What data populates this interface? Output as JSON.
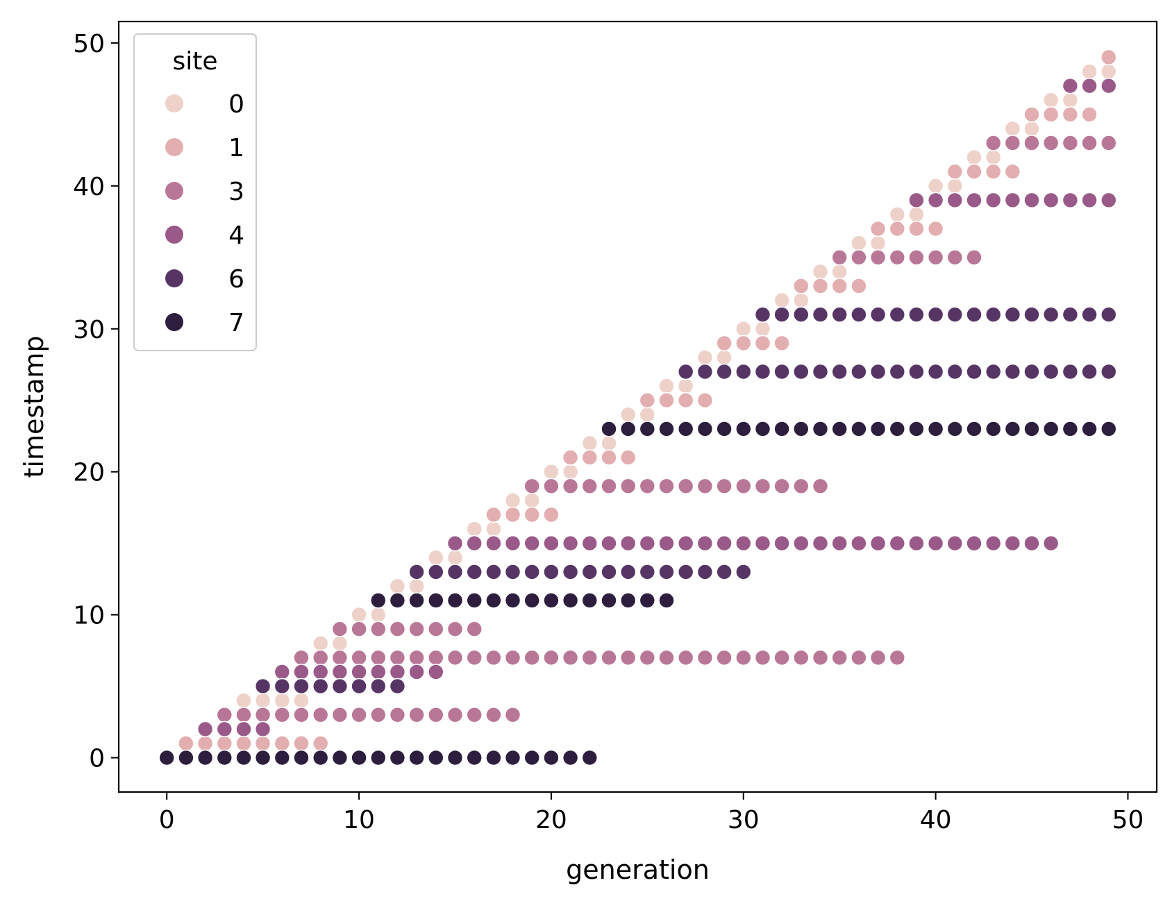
{
  "chart_data": {
    "type": "scatter",
    "title": "",
    "xlabel": "generation",
    "ylabel": "timestamp",
    "xlim": [
      -2.5,
      51.5
    ],
    "ylim": [
      -2.4,
      51.5
    ],
    "xticks": [
      0,
      10,
      20,
      30,
      40,
      50
    ],
    "yticks": [
      0,
      10,
      20,
      30,
      40,
      50
    ],
    "grid": false,
    "legend": {
      "title": "site",
      "placement": "upper-left",
      "entries": [
        {
          "label": "0",
          "color": "#eed1c9"
        },
        {
          "label": "1",
          "color": "#e2aeb0"
        },
        {
          "label": "3",
          "color": "#b97797"
        },
        {
          "label": "4",
          "color": "#9a5a89"
        },
        {
          "label": "6",
          "color": "#563565"
        },
        {
          "label": "7",
          "color": "#2d1e3e"
        }
      ]
    },
    "series": [
      {
        "site": 0,
        "color": "#eed1c9",
        "ranges": [
          {
            "y": 4,
            "x_from": 4,
            "x_to": 7
          },
          {
            "y": 8,
            "x_from": 8,
            "x_to": 9
          },
          {
            "y": 10,
            "x_from": 10,
            "x_to": 11
          },
          {
            "y": 12,
            "x_from": 12,
            "x_to": 13
          },
          {
            "y": 14,
            "x_from": 14,
            "x_to": 15
          },
          {
            "y": 16,
            "x_from": 16,
            "x_to": 17
          },
          {
            "y": 18,
            "x_from": 18,
            "x_to": 19
          },
          {
            "y": 20,
            "x_from": 20,
            "x_to": 21
          },
          {
            "y": 22,
            "x_from": 22,
            "x_to": 23
          },
          {
            "y": 24,
            "x_from": 24,
            "x_to": 25
          },
          {
            "y": 26,
            "x_from": 26,
            "x_to": 27
          },
          {
            "y": 28,
            "x_from": 28,
            "x_to": 29
          },
          {
            "y": 30,
            "x_from": 30,
            "x_to": 31
          },
          {
            "y": 32,
            "x_from": 32,
            "x_to": 33
          },
          {
            "y": 34,
            "x_from": 34,
            "x_to": 35
          },
          {
            "y": 36,
            "x_from": 36,
            "x_to": 37
          },
          {
            "y": 38,
            "x_from": 38,
            "x_to": 39
          },
          {
            "y": 40,
            "x_from": 40,
            "x_to": 41
          },
          {
            "y": 42,
            "x_from": 42,
            "x_to": 43
          },
          {
            "y": 44,
            "x_from": 44,
            "x_to": 45
          },
          {
            "y": 46,
            "x_from": 46,
            "x_to": 47
          },
          {
            "y": 48,
            "x_from": 48,
            "x_to": 49
          }
        ]
      },
      {
        "site": 1,
        "color": "#e2aeb0",
        "ranges": [
          {
            "y": 1,
            "x_from": 1,
            "x_to": 8
          },
          {
            "y": 17,
            "x_from": 17,
            "x_to": 20
          },
          {
            "y": 21,
            "x_from": 21,
            "x_to": 24
          },
          {
            "y": 25,
            "x_from": 25,
            "x_to": 28
          },
          {
            "y": 29,
            "x_from": 29,
            "x_to": 32
          },
          {
            "y": 33,
            "x_from": 33,
            "x_to": 36
          },
          {
            "y": 37,
            "x_from": 37,
            "x_to": 40
          },
          {
            "y": 41,
            "x_from": 41,
            "x_to": 44
          },
          {
            "y": 45,
            "x_from": 45,
            "x_to": 48
          },
          {
            "y": 49,
            "x_from": 49,
            "x_to": 49
          }
        ]
      },
      {
        "site": 3,
        "color": "#b97797",
        "ranges": [
          {
            "y": 3,
            "x_from": 3,
            "x_to": 18
          },
          {
            "y": 7,
            "x_from": 7,
            "x_to": 38
          },
          {
            "y": 9,
            "x_from": 9,
            "x_to": 16
          },
          {
            "y": 19,
            "x_from": 19,
            "x_to": 34
          },
          {
            "y": 35,
            "x_from": 35,
            "x_to": 42
          },
          {
            "y": 43,
            "x_from": 43,
            "x_to": 49
          }
        ]
      },
      {
        "site": 4,
        "color": "#9a5a89",
        "ranges": [
          {
            "y": 2,
            "x_from": 2,
            "x_to": 5
          },
          {
            "y": 6,
            "x_from": 6,
            "x_to": 14
          },
          {
            "y": 15,
            "x_from": 15,
            "x_to": 46
          },
          {
            "y": 39,
            "x_from": 39,
            "x_to": 49
          },
          {
            "y": 47,
            "x_from": 47,
            "x_to": 49
          }
        ]
      },
      {
        "site": 6,
        "color": "#563565",
        "ranges": [
          {
            "y": 5,
            "x_from": 5,
            "x_to": 12
          },
          {
            "y": 13,
            "x_from": 13,
            "x_to": 30
          },
          {
            "y": 27,
            "x_from": 27,
            "x_to": 49
          },
          {
            "y": 31,
            "x_from": 31,
            "x_to": 49
          }
        ]
      },
      {
        "site": 7,
        "color": "#2d1e3e",
        "ranges": [
          {
            "y": 0,
            "x_from": 0,
            "x_to": 22
          },
          {
            "y": 11,
            "x_from": 11,
            "x_to": 26
          },
          {
            "y": 23,
            "x_from": 23,
            "x_to": 49
          }
        ]
      }
    ]
  }
}
